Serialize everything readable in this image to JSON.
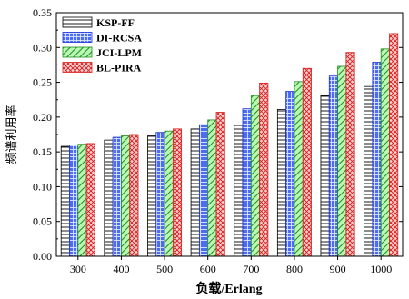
{
  "chart_data": {
    "type": "bar",
    "title": "",
    "xlabel": "负载/Erlang",
    "ylabel": "频谱利用率",
    "categories": [
      "300",
      "400",
      "500",
      "600",
      "700",
      "800",
      "900",
      "1000"
    ],
    "ylim": [
      0.0,
      0.35
    ],
    "yticks": [
      "0.00",
      "0.05",
      "0.10",
      "0.15",
      "0.20",
      "0.25",
      "0.30",
      "0.35"
    ],
    "grid": false,
    "legend_position": "top-left",
    "series": [
      {
        "name": "KSP-FF",
        "fill": "#ffffff",
        "stroke": "#000000",
        "pattern": "horizontal-lines",
        "values": [
          0.158,
          0.167,
          0.173,
          0.183,
          0.188,
          0.211,
          0.231,
          0.244
        ]
      },
      {
        "name": "DI-RCSA",
        "fill": "#4a6cf7",
        "stroke": "#1a2fd6",
        "pattern": "grid",
        "values": [
          0.16,
          0.171,
          0.178,
          0.189,
          0.212,
          0.237,
          0.259,
          0.279
        ]
      },
      {
        "name": "JCI-LPM",
        "fill": "#8ef08a",
        "stroke": "#1e8c1e",
        "pattern": "diagonal-lines",
        "values": [
          0.161,
          0.173,
          0.18,
          0.196,
          0.231,
          0.251,
          0.273,
          0.298
        ]
      },
      {
        "name": "BL-PIRA",
        "fill": "#f5a0a0",
        "stroke": "#d81e1e",
        "pattern": "crosshatch",
        "values": [
          0.162,
          0.175,
          0.183,
          0.207,
          0.249,
          0.27,
          0.293,
          0.32
        ]
      }
    ]
  }
}
